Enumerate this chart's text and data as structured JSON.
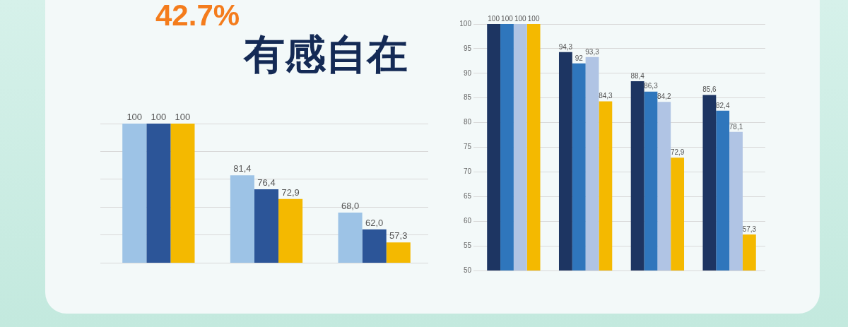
{
  "chart_data": [
    {
      "type": "bar",
      "title": "42.7%",
      "subtitle": "有感自在",
      "categories": [
        null,
        null,
        null
      ],
      "series": [
        {
          "color": "#9dc3e6",
          "values": [
            100,
            81.4,
            68.0
          ],
          "value_labels": [
            "100",
            "81,4",
            "68,0"
          ]
        },
        {
          "color": "#2c5598",
          "values": [
            100,
            76.4,
            62.0
          ],
          "value_labels": [
            "100",
            "76,4",
            "62,0"
          ]
        },
        {
          "color": "#f4b900",
          "values": [
            100,
            72.9,
            57.3
          ],
          "value_labels": [
            "100",
            "72,9",
            "57,3"
          ]
        }
      ],
      "ylim": [
        50,
        100
      ],
      "yticks": [
        {
          "value": 50,
          "label": null
        },
        {
          "value": 60,
          "label": null
        },
        {
          "value": 70,
          "label": null
        },
        {
          "value": 80,
          "label": null
        },
        {
          "value": 90,
          "label": null
        },
        {
          "value": 100,
          "label": null
        }
      ],
      "grid": "y"
    },
    {
      "type": "bar",
      "categories": [
        null,
        null,
        null,
        null
      ],
      "series": [
        {
          "color": "#1d3562",
          "values": [
            100,
            94.3,
            88.4,
            85.6
          ],
          "value_labels": [
            "100",
            "94,3",
            "88,4",
            "85,6"
          ]
        },
        {
          "color": "#2f76bc",
          "values": [
            100,
            92,
            86.3,
            82.4
          ],
          "value_labels": [
            "100",
            "92",
            "86,3",
            "82,4"
          ]
        },
        {
          "color": "#b0c4e4",
          "values": [
            100,
            93.3,
            84.2,
            78.1
          ],
          "value_labels": [
            "100",
            "93,3",
            "84,2",
            "78,1"
          ]
        },
        {
          "color": "#f4b900",
          "values": [
            100,
            84.3,
            72.9,
            57.3
          ],
          "value_labels": [
            "100",
            "84,3",
            "72,9",
            "57,3"
          ]
        }
      ],
      "ylim": [
        50,
        100
      ],
      "yticks": [
        50,
        55,
        60,
        65,
        70,
        75,
        80,
        85,
        90,
        95,
        100
      ],
      "grid": "y"
    }
  ]
}
